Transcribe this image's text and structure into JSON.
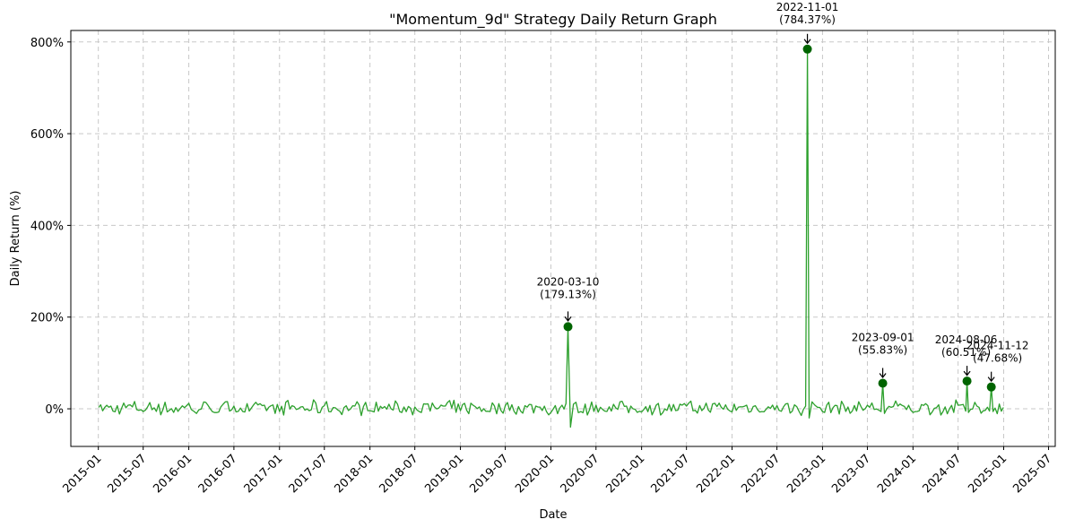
{
  "chart_data": {
    "type": "line",
    "title": "\"Momentum_9d\" Strategy Daily Return Graph",
    "xlabel": "Date",
    "ylabel": "Daily Return (%)",
    "x_range": [
      "2014-09-12",
      "2025-07-28"
    ],
    "ylim": [
      -82,
      825
    ],
    "yticks": [
      0,
      200,
      400,
      600,
      800
    ],
    "ytick_labels": [
      "0%",
      "200%",
      "400%",
      "600%",
      "800%"
    ],
    "xticks": [
      "2015-01-01",
      "2015-07-01",
      "2016-01-01",
      "2016-07-01",
      "2017-01-01",
      "2017-07-01",
      "2018-01-01",
      "2018-07-01",
      "2019-01-01",
      "2019-07-01",
      "2020-01-01",
      "2020-07-01",
      "2021-01-01",
      "2021-07-01",
      "2022-01-01",
      "2022-07-01",
      "2023-01-01",
      "2023-07-01",
      "2024-01-01",
      "2024-07-01",
      "2025-01-01",
      "2025-07-01"
    ],
    "xtick_labels": [
      "2015-01",
      "2015-07",
      "2016-01",
      "2016-07",
      "2017-01",
      "2017-07",
      "2018-01",
      "2018-07",
      "2019-01",
      "2019-07",
      "2020-01",
      "2020-07",
      "2021-01",
      "2021-07",
      "2022-01",
      "2022-07",
      "2023-01",
      "2023-07",
      "2024-01",
      "2024-07",
      "2025-01",
      "2025-07"
    ],
    "grid": true,
    "line_color": "#2ca02c",
    "marker_color": "#006400",
    "series": [
      {
        "name": "",
        "x": [
          "2015-01-02",
          "2015-03-01",
          "2015-05-01",
          "2015-07-01",
          "2015-09-01",
          "2015-11-01",
          "2016-01-01",
          "2016-02-01",
          "2016-03-01",
          "2016-05-01",
          "2016-07-01",
          "2016-09-01",
          "2016-11-01",
          "2017-01-01",
          "2017-03-01",
          "2017-05-01",
          "2017-07-01",
          "2017-09-01",
          "2017-11-01",
          "2018-01-01",
          "2018-03-01",
          "2018-05-01",
          "2018-07-01",
          "2018-09-01",
          "2018-11-01",
          "2019-01-01",
          "2019-03-01",
          "2019-05-01",
          "2019-07-01",
          "2019-09-01",
          "2019-11-01",
          "2020-01-01",
          "2020-02-15",
          "2020-03-10",
          "2020-03-20",
          "2020-04-01",
          "2020-05-01",
          "2020-07-01",
          "2020-09-01",
          "2020-11-01",
          "2021-01-01",
          "2021-03-01",
          "2021-05-01",
          "2021-07-01",
          "2021-09-01",
          "2021-11-01",
          "2022-01-01",
          "2022-03-01",
          "2022-05-01",
          "2022-07-01",
          "2022-09-01",
          "2022-10-25",
          "2022-11-01",
          "2022-11-08",
          "2022-12-01",
          "2023-01-01",
          "2023-03-01",
          "2023-05-01",
          "2023-07-01",
          "2023-08-25",
          "2023-09-01",
          "2023-09-08",
          "2023-11-01",
          "2024-01-01",
          "2024-03-01",
          "2024-05-01",
          "2024-07-01",
          "2024-08-01",
          "2024-08-06",
          "2024-08-12",
          "2024-09-15",
          "2024-11-05",
          "2024-11-12",
          "2024-11-19",
          "2024-12-31"
        ],
        "y": [
          3,
          -5,
          8,
          -6,
          10,
          -8,
          12,
          -10,
          15,
          -7,
          6,
          -5,
          8,
          -6,
          5,
          -4,
          7,
          -5,
          6,
          -4,
          5,
          -6,
          4,
          -5,
          6,
          -4,
          5,
          -6,
          7,
          -5,
          6,
          -8,
          8,
          179.13,
          -40,
          10,
          -6,
          8,
          -5,
          6,
          -7,
          8,
          -5,
          6,
          -4,
          5,
          -7,
          8,
          -6,
          7,
          -5,
          6,
          784.37,
          -20,
          8,
          -6,
          7,
          -5,
          8,
          -6,
          55.83,
          -10,
          6,
          -8,
          7,
          -6,
          8,
          -5,
          60.51,
          -8,
          6,
          -5,
          47.68,
          -6,
          3
        ]
      }
    ],
    "annotations": [
      {
        "date": "2020-03-10",
        "value": 179.13,
        "line1": "2020-03-10",
        "line2": "(179.13%)"
      },
      {
        "date": "2022-11-01",
        "value": 784.37,
        "line1": "2022-11-01",
        "line2": "(784.37%)"
      },
      {
        "date": "2023-09-01",
        "value": 55.83,
        "line1": "2023-09-01",
        "line2": "(55.83%)"
      },
      {
        "date": "2024-08-06",
        "value": 60.51,
        "line1": "2024-08-06",
        "line2": "(60.51%)"
      },
      {
        "date": "2024-11-12",
        "value": 47.68,
        "line1": "2024-11-12",
        "line2": "(47.68%)"
      }
    ]
  }
}
